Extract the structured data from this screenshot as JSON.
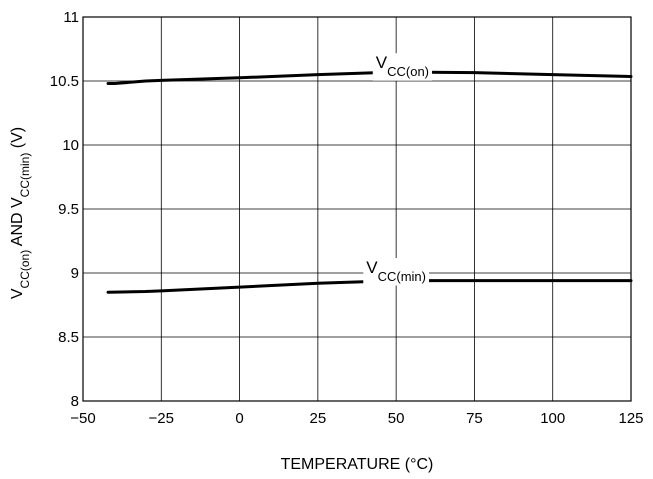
{
  "chart_data": {
    "type": "line",
    "xlabel": "TEMPERATURE (°C)",
    "ylabel": {
      "parts": [
        {
          "text": "V",
          "sub": false
        },
        {
          "text": "CC(on)",
          "sub": true
        },
        {
          "text": " AND V",
          "sub": false
        },
        {
          "text": "CC(min)",
          "sub": true
        },
        {
          "text": " (V)",
          "sub": false
        }
      ]
    },
    "xlim": [
      -50,
      125
    ],
    "ylim": [
      8,
      11
    ],
    "xticks": [
      -50,
      -25,
      0,
      25,
      50,
      75,
      100,
      125
    ],
    "yticks": [
      8,
      8.5,
      9,
      9.5,
      10,
      10.5,
      11
    ],
    "xtick_labels": [
      "−50",
      "−25",
      "0",
      "25",
      "50",
      "75",
      "100",
      "125"
    ],
    "ytick_labels": [
      "8",
      "8.5",
      "9",
      "9.5",
      "10",
      "10.5",
      "11"
    ],
    "grid": true,
    "series": [
      {
        "name": "V",
        "name_sub": "CC(on)",
        "label_at": {
          "x": 52,
          "y": 10.6
        },
        "x": [
          -42,
          -40,
          -30,
          -25,
          0,
          25,
          50,
          75,
          100,
          125
        ],
        "y": [
          10.48,
          10.48,
          10.5,
          10.505,
          10.525,
          10.55,
          10.57,
          10.565,
          10.55,
          10.535
        ]
      },
      {
        "name": "V",
        "name_sub": "CC(min)",
        "label_at": {
          "x": 50,
          "y": 9.0
        },
        "x": [
          -42,
          -30,
          -25,
          0,
          25,
          50,
          75,
          100,
          125
        ],
        "y": [
          8.85,
          8.855,
          8.86,
          8.89,
          8.92,
          8.94,
          8.94,
          8.94,
          8.94
        ]
      }
    ]
  }
}
